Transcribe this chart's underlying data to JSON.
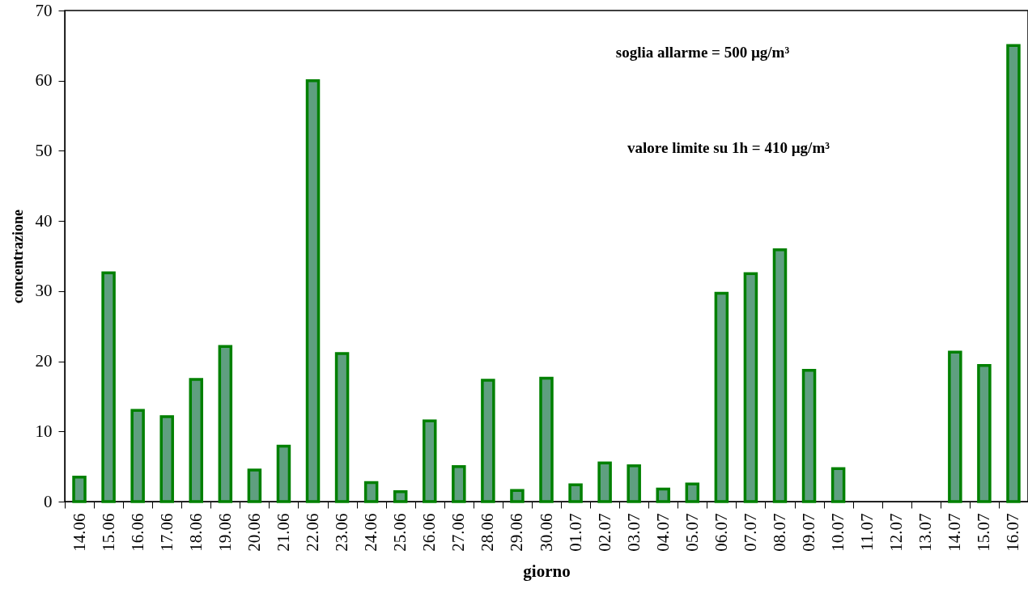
{
  "chart_data": {
    "type": "bar",
    "xlabel": "giorno",
    "ylabel": "concentrazione",
    "annotations": [
      "soglia allarme = 500 µg/m³",
      "valore limite su 1h = 410 µg/m³"
    ],
    "categories": [
      "14.06",
      "15.06",
      "16.06",
      "17.06",
      "18.06",
      "19.06",
      "20.06",
      "21.06",
      "22.06",
      "23.06",
      "24.06",
      "25.06",
      "26.06",
      "27.06",
      "28.06",
      "29.06",
      "30.06",
      "01.07",
      "02.07",
      "03.07",
      "04.07",
      "05.07",
      "06.07",
      "07.07",
      "08.07",
      "09.07",
      "10.07",
      "11.07",
      "12.07",
      "13.07",
      "14.07",
      "15.07",
      "16.07"
    ],
    "values": [
      3.5,
      32.6,
      13.0,
      12.1,
      17.4,
      22.1,
      4.5,
      7.9,
      60.0,
      21.1,
      2.7,
      1.4,
      11.5,
      5.0,
      17.3,
      1.6,
      17.6,
      2.4,
      5.5,
      5.1,
      1.8,
      2.5,
      29.7,
      32.5,
      35.9,
      18.7,
      4.7,
      null,
      null,
      null,
      21.3,
      19.4,
      65.0
    ],
    "color": "#5f9f80",
    "ylim": [
      0,
      70
    ],
    "yticks": [
      0,
      10,
      20,
      30,
      40,
      50,
      60,
      70
    ]
  }
}
